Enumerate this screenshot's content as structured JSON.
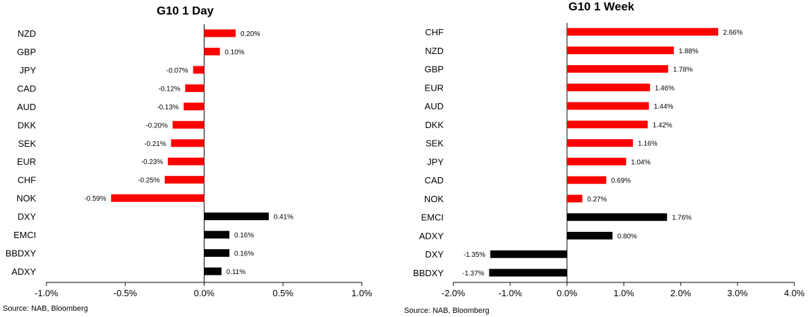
{
  "chart_data": [
    {
      "type": "bar",
      "orientation": "horizontal",
      "title": "G10 1 Day",
      "source": "Source: NAB, Bloomberg",
      "categories": [
        "NZD",
        "GBP",
        "JPY",
        "CAD",
        "AUD",
        "DKK",
        "SEK",
        "EUR",
        "CHF",
        "NOK",
        "DXY",
        "EMCI",
        "BBDXY",
        "ADXY"
      ],
      "values": [
        0.2,
        0.1,
        -0.07,
        -0.12,
        -0.13,
        -0.2,
        -0.21,
        -0.23,
        -0.25,
        -0.59,
        0.41,
        0.16,
        0.16,
        0.11
      ],
      "value_labels": [
        "0.20%",
        "0.10%",
        "-0.07%",
        "-0.12%",
        "-0.13%",
        "-0.20%",
        "-0.21%",
        "-0.23%",
        "-0.25%",
        "-0.59%",
        "0.41%",
        "0.16%",
        "0.16%",
        "0.11%"
      ],
      "bar_colors": [
        "#ff0000",
        "#ff0000",
        "#ff0000",
        "#ff0000",
        "#ff0000",
        "#ff0000",
        "#ff0000",
        "#ff0000",
        "#ff0000",
        "#ff0000",
        "#000000",
        "#000000",
        "#000000",
        "#000000"
      ],
      "xlim": [
        -1.0,
        1.0
      ],
      "xticks": [
        -1.0,
        -0.5,
        0.0,
        0.5,
        1.0
      ],
      "xtick_labels": [
        "-1.0%",
        "-0.5%",
        "0.0%",
        "0.5%",
        "1.0%"
      ],
      "grid": false,
      "legend": "none"
    },
    {
      "type": "bar",
      "orientation": "horizontal",
      "title": "G10 1 Week",
      "source": "Source: NAB, Bloomberg",
      "categories": [
        "CHF",
        "NZD",
        "GBP",
        "EUR",
        "AUD",
        "DKK",
        "SEK",
        "JPY",
        "CAD",
        "NOK",
        "EMCI",
        "ADXY",
        "DXY",
        "BBDXY"
      ],
      "values": [
        2.66,
        1.88,
        1.78,
        1.46,
        1.44,
        1.42,
        1.16,
        1.04,
        0.69,
        0.27,
        1.76,
        0.8,
        -1.35,
        -1.37
      ],
      "value_labels": [
        "2.66%",
        "1.88%",
        "1.78%",
        "1.46%",
        "1.44%",
        "1.42%",
        "1.16%",
        "1.04%",
        "0.69%",
        "0.27%",
        "1.76%",
        "0.80%",
        "-1.35%",
        "-1.37%"
      ],
      "bar_colors": [
        "#ff0000",
        "#ff0000",
        "#ff0000",
        "#ff0000",
        "#ff0000",
        "#ff0000",
        "#ff0000",
        "#ff0000",
        "#ff0000",
        "#ff0000",
        "#000000",
        "#000000",
        "#000000",
        "#000000"
      ],
      "xlim": [
        -2.0,
        4.0
      ],
      "xticks": [
        -2.0,
        -1.0,
        0.0,
        1.0,
        2.0,
        3.0,
        4.0
      ],
      "xtick_labels": [
        "-2.0%",
        "-1.0%",
        "0.0%",
        "1.0%",
        "2.0%",
        "3.0%",
        "4.0%"
      ],
      "grid": false,
      "legend": "none"
    }
  ]
}
